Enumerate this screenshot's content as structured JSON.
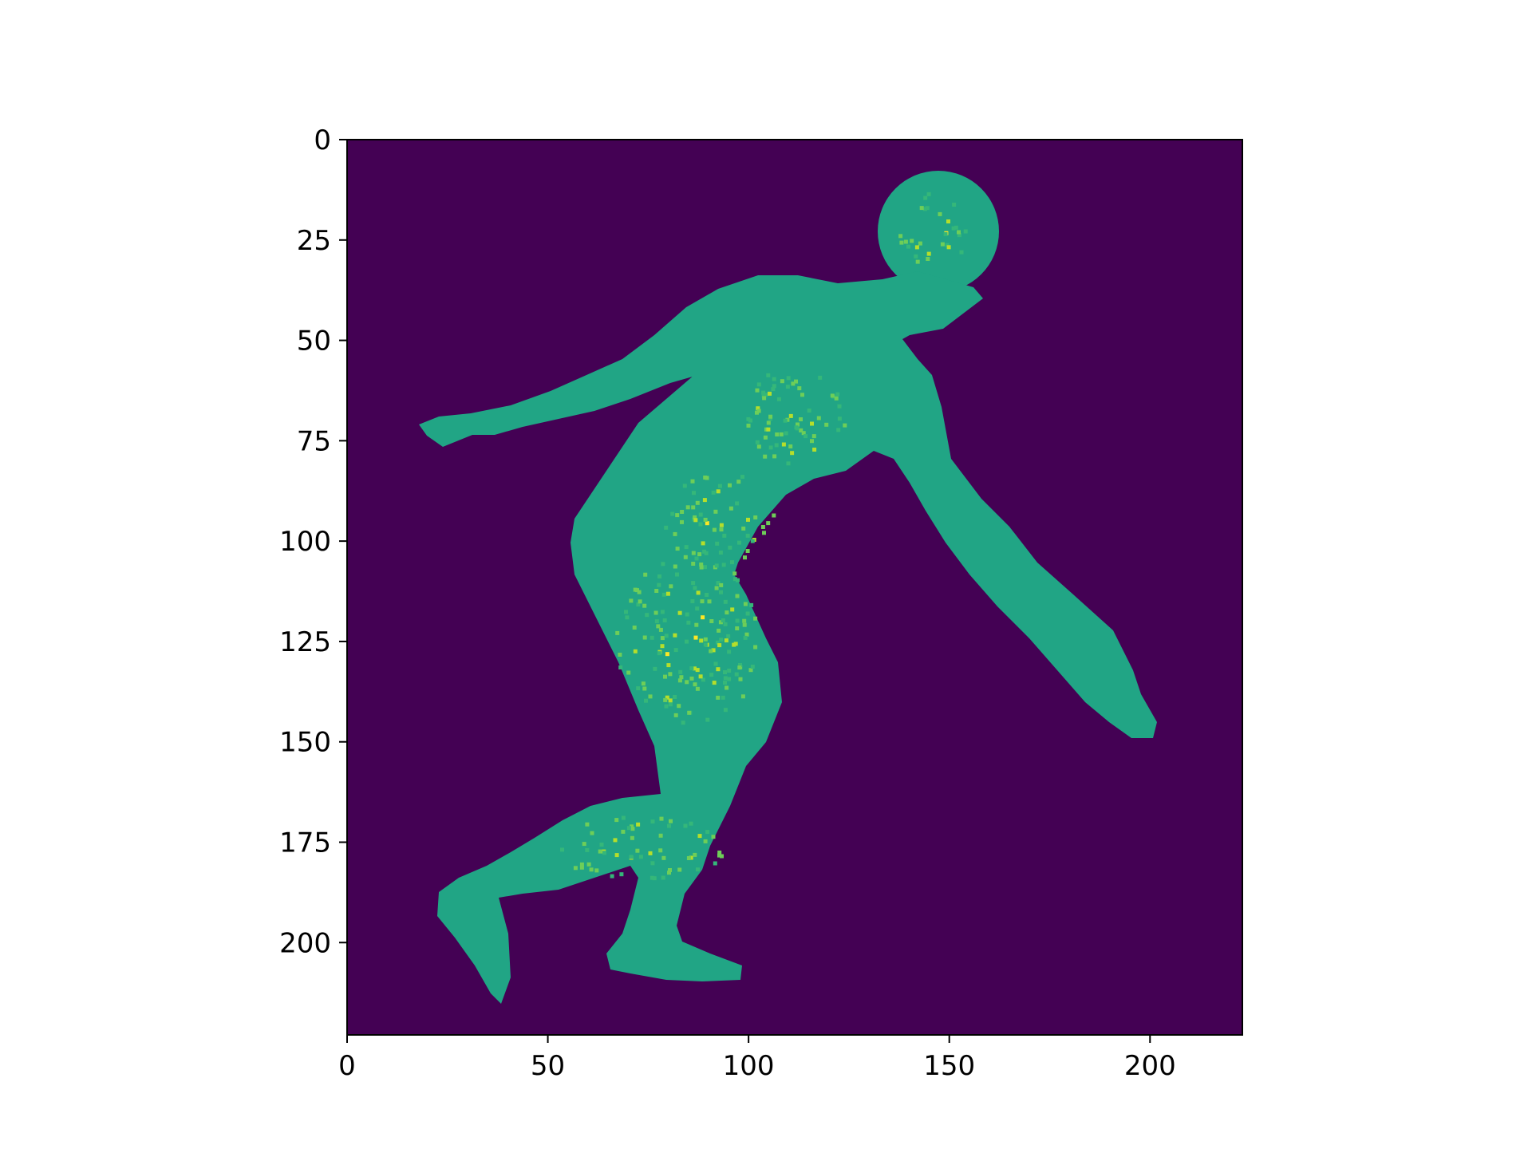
{
  "image": {
    "kind": "matplotlib imshow of a human silhouette segmentation / depth map",
    "colormap": "viridis",
    "background_color": "#440154",
    "figure_fill_color": "#21a585",
    "highlight_colors": [
      "#35b779",
      "#6ece58",
      "#b5de2b",
      "#fde725"
    ],
    "axes_frame_color": "#000000"
  },
  "axes": {
    "x": {
      "range": [
        0,
        223
      ],
      "ticks": [
        0,
        50,
        100,
        150,
        200
      ],
      "tick_labels": [
        "0",
        "50",
        "100",
        "150",
        "200"
      ]
    },
    "y": {
      "range": [
        0,
        223
      ],
      "inverted": true,
      "ticks": [
        0,
        25,
        50,
        75,
        100,
        125,
        150,
        175,
        200
      ],
      "tick_labels": [
        "0",
        "25",
        "50",
        "75",
        "100",
        "125",
        "150",
        "175",
        "200"
      ]
    }
  }
}
